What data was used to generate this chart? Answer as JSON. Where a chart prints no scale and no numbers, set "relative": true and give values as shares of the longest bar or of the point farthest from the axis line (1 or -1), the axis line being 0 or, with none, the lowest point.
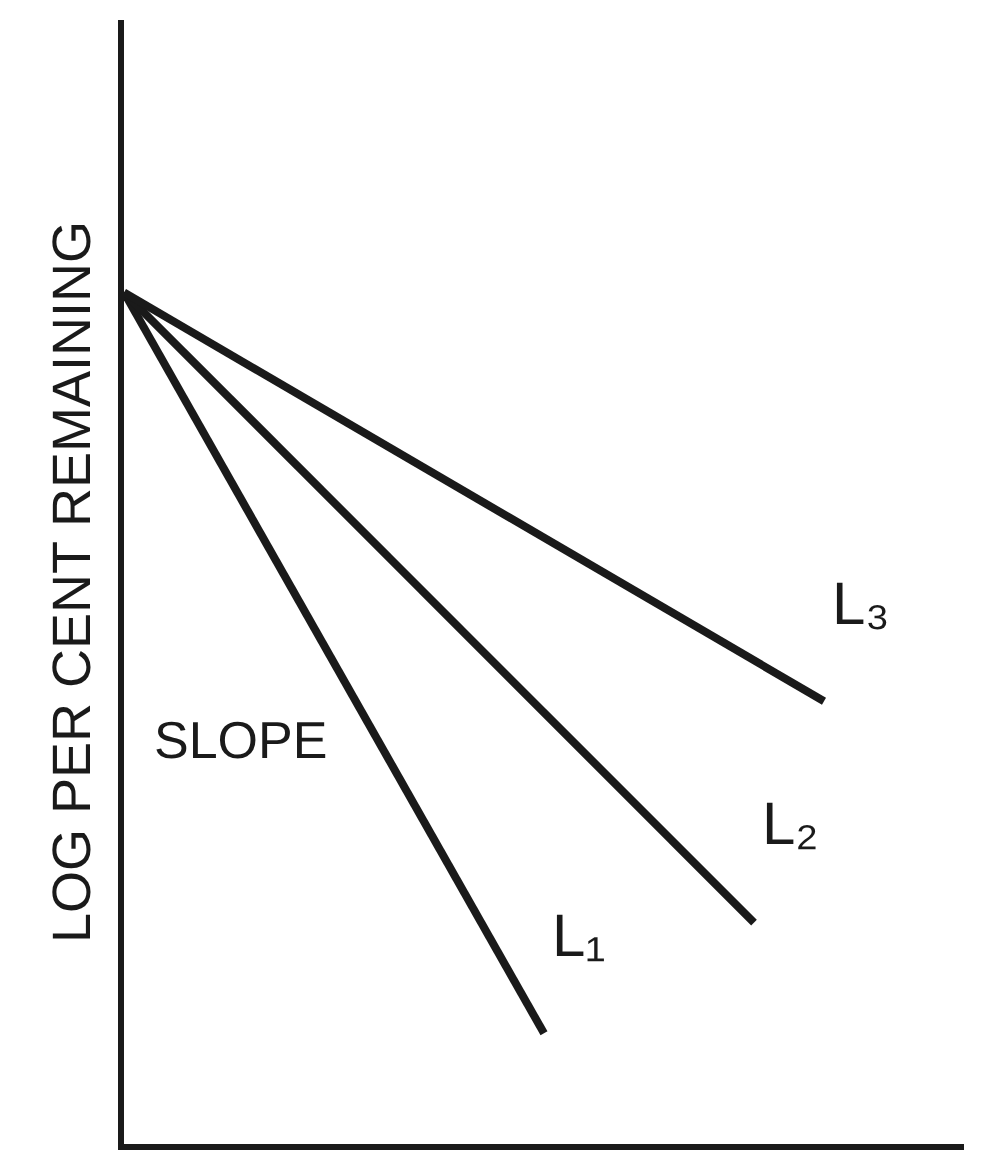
{
  "chart_data": {
    "type": "line",
    "relative": true,
    "ylabel": "LOG PER CENT REMAINING",
    "categories": [
      null,
      null,
      null,
      null,
      null,
      null,
      null,
      null,
      null,
      null,
      null
    ],
    "series": [
      {
        "name": "L₁",
        "color": "#1a1a1a",
        "values": [
          1,
          null,
          null,
          null,
          null,
          null,
          0.13,
          null,
          null,
          null,
          null
        ]
      },
      {
        "name": "L₂",
        "color": "#1a1a1a",
        "values": [
          1,
          null,
          null,
          null,
          null,
          null,
          null,
          null,
          null,
          0.26,
          null
        ]
      },
      {
        "name": "L₃",
        "color": "#1a1a1a",
        "values": [
          1,
          null,
          null,
          null,
          null,
          null,
          null,
          null,
          null,
          null,
          0.52
        ]
      }
    ],
    "annotations": [
      "SLOPE"
    ],
    "legend": false,
    "marker": "none",
    "line_style": "solid"
  }
}
